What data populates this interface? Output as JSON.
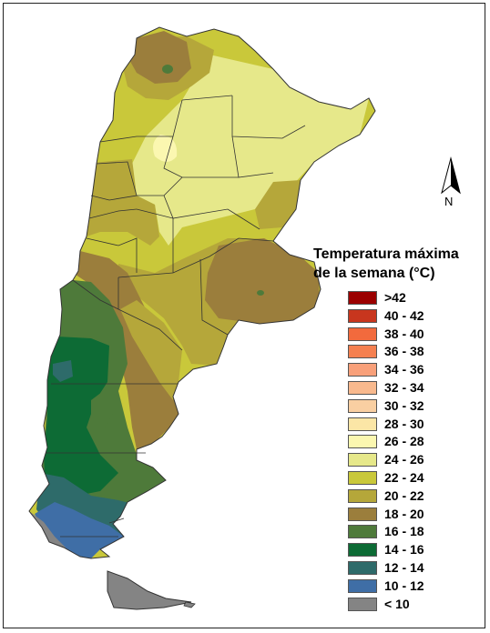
{
  "map": {
    "legend_title_line1": "Temperatura máxima",
    "legend_title_line2": "de la semana (°C)",
    "north_label": "N",
    "legend": [
      {
        "label": ">42",
        "color": "#9b0000"
      },
      {
        "label": "40 - 42",
        "color": "#c8361e"
      },
      {
        "label": "38 - 40",
        "color": "#f26a3d"
      },
      {
        "label": "36 - 38",
        "color": "#f58050"
      },
      {
        "label": "34 - 36",
        "color": "#f8a07a"
      },
      {
        "label": "32 - 34",
        "color": "#f8b98e"
      },
      {
        "label": "30 - 32",
        "color": "#f9cfa2"
      },
      {
        "label": "28 - 30",
        "color": "#fbe6a6"
      },
      {
        "label": "26 - 28",
        "color": "#fbf7b0"
      },
      {
        "label": "24 - 26",
        "color": "#e6e88a"
      },
      {
        "label": "22 - 24",
        "color": "#c9c83a"
      },
      {
        "label": "20 - 22",
        "color": "#b5a73a"
      },
      {
        "label": "18 - 20",
        "color": "#9b7e3c"
      },
      {
        "label": "16 - 18",
        "color": "#4e7a3a"
      },
      {
        "label": "14 - 16",
        "color": "#0d6b35"
      },
      {
        "label": "12 - 14",
        "color": "#2e6b6a"
      },
      {
        "label": "10 - 12",
        "color": "#3f6ea6"
      },
      {
        "label": "< 10",
        "color": "#848484"
      }
    ]
  }
}
